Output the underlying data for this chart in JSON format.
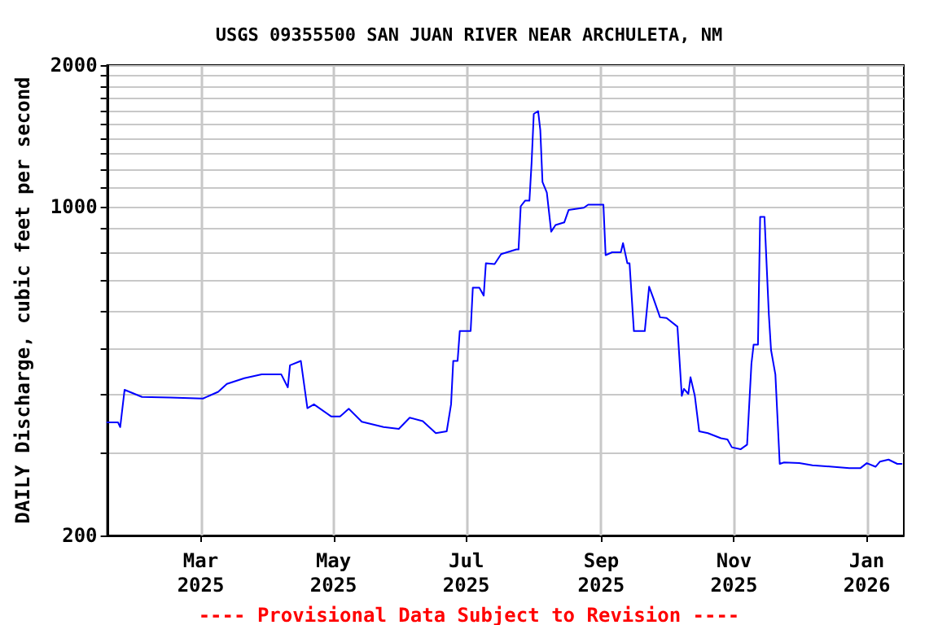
{
  "chart_data": {
    "type": "line",
    "title": "USGS 09355500 SAN JUAN RIVER NEAR ARCHULETA, NM",
    "ylabel": "DAILY Discharge, cubic feet per second",
    "annotations": [
      "---- Provisional Data Subject to Revision ----"
    ],
    "log": "y",
    "grid": true,
    "marker": "none",
    "line_style": "solid",
    "xlim": [
      "2025-01-17",
      "2026-01-18"
    ],
    "xticks": [
      {
        "value": "2025-03-01",
        "label": "Mar\n2025"
      },
      {
        "value": "2025-05-01",
        "label": "May\n2025"
      },
      {
        "value": "2025-07-01",
        "label": "Jul\n2025"
      },
      {
        "value": "2025-09-01",
        "label": "Sep\n2025"
      },
      {
        "value": "2025-11-01",
        "label": "Nov\n2025"
      },
      {
        "value": "2026-01-01",
        "label": "Jan\n2026"
      }
    ],
    "ylim": [
      200,
      2000
    ],
    "yticks": [
      200,
      {
        "value": 300,
        "label": null
      },
      {
        "value": 400,
        "label": null
      },
      {
        "value": 500,
        "label": null
      },
      {
        "value": 600,
        "label": null
      },
      {
        "value": 700,
        "label": null
      },
      {
        "value": 800,
        "label": null
      },
      {
        "value": 900,
        "label": null
      },
      1000,
      {
        "value": 1100,
        "label": null
      },
      {
        "value": 1200,
        "label": null
      },
      {
        "value": 1300,
        "label": null
      },
      {
        "value": 1400,
        "label": null
      },
      {
        "value": 1500,
        "label": null
      },
      {
        "value": 1600,
        "label": null
      },
      {
        "value": 1700,
        "label": null
      },
      {
        "value": 1800,
        "label": null
      },
      {
        "value": 1900,
        "label": null
      },
      2000
    ],
    "x": [
      "2025-01-17",
      "2025-01-22",
      "2025-01-23",
      "2025-01-25",
      "2025-02-02",
      "2025-02-15",
      "2025-03-02",
      "2025-03-09",
      "2025-03-13",
      "2025-03-21",
      "2025-03-29",
      "2025-04-07",
      "2025-04-10",
      "2025-04-11",
      "2025-04-16",
      "2025-04-19",
      "2025-04-22",
      "2025-04-30",
      "2025-05-04",
      "2025-05-08",
      "2025-05-14",
      "2025-05-24",
      "2025-05-31",
      "2025-06-05",
      "2025-06-11",
      "2025-06-17",
      "2025-06-22",
      "2025-06-24",
      "2025-06-25",
      "2025-06-27",
      "2025-06-28",
      "2025-07-03",
      "2025-07-04",
      "2025-07-07",
      "2025-07-09",
      "2025-07-10",
      "2025-07-14",
      "2025-07-17",
      "2025-07-24",
      "2025-07-25",
      "2025-07-26",
      "2025-07-28",
      "2025-07-30",
      "2025-07-31",
      "2025-08-01",
      "2025-08-03",
      "2025-08-04",
      "2025-08-05",
      "2025-08-07",
      "2025-08-09",
      "2025-08-11",
      "2025-08-15",
      "2025-08-17",
      "2025-08-24",
      "2025-08-26",
      "2025-09-02",
      "2025-09-03",
      "2025-09-06",
      "2025-09-10",
      "2025-09-11",
      "2025-09-13",
      "2025-09-14",
      "2025-09-16",
      "2025-09-21",
      "2025-09-23",
      "2025-09-25",
      "2025-09-28",
      "2025-10-01",
      "2025-10-06",
      "2025-10-08",
      "2025-10-09",
      "2025-10-11",
      "2025-10-12",
      "2025-10-14",
      "2025-10-16",
      "2025-10-20",
      "2025-10-26",
      "2025-10-29",
      "2025-10-31",
      "2025-11-04",
      "2025-11-07",
      "2025-11-09",
      "2025-11-10",
      "2025-11-12",
      "2025-11-13",
      "2025-11-15",
      "2025-11-17",
      "2025-11-18",
      "2025-11-20",
      "2025-11-22",
      "2025-11-24",
      "2025-12-01",
      "2025-12-07",
      "2025-12-16",
      "2025-12-24",
      "2025-12-29",
      "2026-01-01",
      "2026-01-05",
      "2026-01-07",
      "2026-01-11",
      "2026-01-15",
      "2026-01-17"
    ],
    "series": [
      {
        "color": "#0000ff",
        "values": [
          348,
          348,
          340,
          408,
          394,
          393,
          391,
          404,
          420,
          432,
          440,
          440,
          413,
          460,
          470,
          373,
          380,
          358,
          358,
          372,
          349,
          340,
          337,
          356,
          350,
          330,
          333,
          380,
          470,
          470,
          544,
          544,
          673,
          673,
          647,
          758,
          755,
          793,
          811,
          811,
          1002,
          1030,
          1030,
          1240,
          1575,
          1597,
          1455,
          1129,
          1072,
          885,
          914,
          926,
          984,
          995,
          1010,
          1010,
          789,
          800,
          800,
          837,
          758,
          758,
          544,
          544,
          676,
          638,
          582,
          580,
          556,
          396,
          410,
          400,
          434,
          396,
          333,
          330,
          322,
          320,
          308,
          305,
          312,
          464,
          509,
          509,
          951,
          951,
          590,
          496,
          440,
          284,
          286,
          285,
          282,
          280,
          278,
          278,
          285,
          280,
          287,
          290,
          284,
          284
        ]
      }
    ]
  }
}
